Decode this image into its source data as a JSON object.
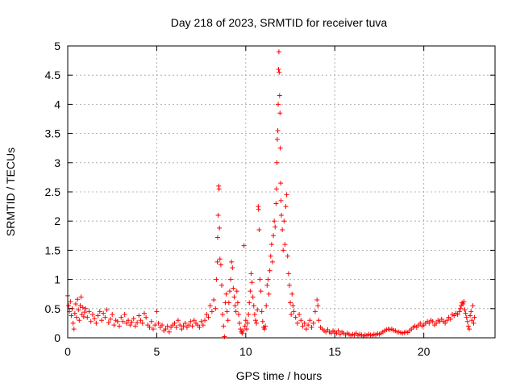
{
  "chart_data": {
    "type": "scatter",
    "title": "Day 218 of 2023, SRMTID for receiver tuva",
    "xlabel": "GPS time / hours",
    "ylabel": "SRMTID / TECUs",
    "xlim": [
      0,
      24
    ],
    "ylim": [
      0,
      5
    ],
    "xticks": [
      0,
      5,
      10,
      15,
      20
    ],
    "yticks": [
      0,
      0.5,
      1,
      1.5,
      2,
      2.5,
      3,
      3.5,
      4,
      4.5,
      5
    ],
    "grid": true,
    "marker": "+",
    "series": [
      {
        "name": "SRMTID",
        "color": "#ff0000",
        "points": [
          [
            0.0,
            0.72
          ],
          [
            0.05,
            0.55
          ],
          [
            0.1,
            0.45
          ],
          [
            0.15,
            0.62
          ],
          [
            0.2,
            0.38
          ],
          [
            0.25,
            0.5
          ],
          [
            0.3,
            0.25
          ],
          [
            0.35,
            0.15
          ],
          [
            0.4,
            0.42
          ],
          [
            0.45,
            0.58
          ],
          [
            0.5,
            0.35
          ],
          [
            0.55,
            0.66
          ],
          [
            0.6,
            0.48
          ],
          [
            0.65,
            0.3
          ],
          [
            0.7,
            0.55
          ],
          [
            0.75,
            0.7
          ],
          [
            0.8,
            0.4
          ],
          [
            0.85,
            0.52
          ],
          [
            0.9,
            0.36
          ],
          [
            0.95,
            0.44
          ],
          [
            1.0,
            0.5
          ],
          [
            1.1,
            0.35
          ],
          [
            1.2,
            0.45
          ],
          [
            1.3,
            0.28
          ],
          [
            1.4,
            0.4
          ],
          [
            1.5,
            0.33
          ],
          [
            1.6,
            0.25
          ],
          [
            1.7,
            0.38
          ],
          [
            1.8,
            0.45
          ],
          [
            1.9,
            0.3
          ],
          [
            2.0,
            0.42
          ],
          [
            2.1,
            0.35
          ],
          [
            2.2,
            0.48
          ],
          [
            2.3,
            0.26
          ],
          [
            2.4,
            0.32
          ],
          [
            2.5,
            0.4
          ],
          [
            2.6,
            0.22
          ],
          [
            2.7,
            0.3
          ],
          [
            2.8,
            0.28
          ],
          [
            2.9,
            0.2
          ],
          [
            3.0,
            0.35
          ],
          [
            3.1,
            0.28
          ],
          [
            3.2,
            0.4
          ],
          [
            3.3,
            0.25
          ],
          [
            3.4,
            0.3
          ],
          [
            3.5,
            0.22
          ],
          [
            3.6,
            0.27
          ],
          [
            3.7,
            0.33
          ],
          [
            3.8,
            0.2
          ],
          [
            3.9,
            0.26
          ],
          [
            4.0,
            0.38
          ],
          [
            4.1,
            0.3
          ],
          [
            4.2,
            0.25
          ],
          [
            4.3,
            0.42
          ],
          [
            4.4,
            0.35
          ],
          [
            4.5,
            0.22
          ],
          [
            4.6,
            0.18
          ],
          [
            4.7,
            0.28
          ],
          [
            4.8,
            0.15
          ],
          [
            4.9,
            0.22
          ],
          [
            5.0,
            0.45
          ],
          [
            5.1,
            0.25
          ],
          [
            5.2,
            0.18
          ],
          [
            5.3,
            0.22
          ],
          [
            5.4,
            0.12
          ],
          [
            5.5,
            0.15
          ],
          [
            5.6,
            0.2
          ],
          [
            5.7,
            0.1
          ],
          [
            5.8,
            0.18
          ],
          [
            5.9,
            0.22
          ],
          [
            6.0,
            0.25
          ],
          [
            6.1,
            0.18
          ],
          [
            6.2,
            0.3
          ],
          [
            6.3,
            0.22
          ],
          [
            6.4,
            0.15
          ],
          [
            6.5,
            0.2
          ],
          [
            6.6,
            0.25
          ],
          [
            6.7,
            0.18
          ],
          [
            6.8,
            0.22
          ],
          [
            6.9,
            0.28
          ],
          [
            7.0,
            0.2
          ],
          [
            7.1,
            0.3
          ],
          [
            7.2,
            0.25
          ],
          [
            7.3,
            0.22
          ],
          [
            7.4,
            0.18
          ],
          [
            7.5,
            0.28
          ],
          [
            7.6,
            0.22
          ],
          [
            7.7,
            0.3
          ],
          [
            7.8,
            0.4
          ],
          [
            7.9,
            0.35
          ],
          [
            8.0,
            0.55
          ],
          [
            8.1,
            0.45
          ],
          [
            8.2,
            0.65
          ],
          [
            8.3,
            0.5
          ],
          [
            8.35,
            1.0
          ],
          [
            8.4,
            1.3
          ],
          [
            8.42,
            1.72
          ],
          [
            8.45,
            2.1
          ],
          [
            8.48,
            2.6
          ],
          [
            8.5,
            2.55
          ],
          [
            8.52,
            1.88
          ],
          [
            8.55,
            1.35
          ],
          [
            8.6,
            1.25
          ],
          [
            8.65,
            0.9
          ],
          [
            8.7,
            0.4
          ],
          [
            8.75,
            0.2
          ],
          [
            8.8,
            0.02
          ],
          [
            8.85,
            0.6
          ],
          [
            8.9,
            0.75
          ],
          [
            8.95,
            0.45
          ],
          [
            9.0,
            0.3
          ],
          [
            9.05,
            0.6
          ],
          [
            9.1,
            0.8
          ],
          [
            9.15,
            1.0
          ],
          [
            9.2,
            1.3
          ],
          [
            9.25,
            1.2
          ],
          [
            9.3,
            0.85
          ],
          [
            9.35,
            0.7
          ],
          [
            9.4,
            0.55
          ],
          [
            9.45,
            0.45
          ],
          [
            9.5,
            0.8
          ],
          [
            9.55,
            0.6
          ],
          [
            9.6,
            0.4
          ],
          [
            9.65,
            0.25
          ],
          [
            9.7,
            0.15
          ],
          [
            9.75,
            0.1
          ],
          [
            9.8,
            0.08
          ],
          [
            9.85,
            0.12
          ],
          [
            9.9,
            1.58
          ],
          [
            9.95,
            0.2
          ],
          [
            10.0,
            0.3
          ],
          [
            10.05,
            0.15
          ],
          [
            10.1,
            0.25
          ],
          [
            10.15,
            0.4
          ],
          [
            10.2,
            0.6
          ],
          [
            10.25,
            0.8
          ],
          [
            10.3,
            1.1
          ],
          [
            10.35,
            0.95
          ],
          [
            10.4,
            0.7
          ],
          [
            10.45,
            0.55
          ],
          [
            10.5,
            0.4
          ],
          [
            10.55,
            0.3
          ],
          [
            10.6,
            0.25
          ],
          [
            10.65,
            0.48
          ],
          [
            10.7,
            2.25
          ],
          [
            10.72,
            2.2
          ],
          [
            10.75,
            1.85
          ],
          [
            10.8,
            1.0
          ],
          [
            10.85,
            0.8
          ],
          [
            10.9,
            0.45
          ],
          [
            10.95,
            0.28
          ],
          [
            11.0,
            0.18
          ],
          [
            11.05,
            0.15
          ],
          [
            11.1,
            0.2
          ],
          [
            11.15,
            0.55
          ],
          [
            11.2,
            0.9
          ],
          [
            11.25,
            1.0
          ],
          [
            11.3,
            0.75
          ],
          [
            11.35,
            1.15
          ],
          [
            11.4,
            1.4
          ],
          [
            11.45,
            1.6
          ],
          [
            11.5,
            1.3
          ],
          [
            11.55,
            1.75
          ],
          [
            11.6,
            2.0
          ],
          [
            11.65,
            1.9
          ],
          [
            11.7,
            2.3
          ],
          [
            11.72,
            2.55
          ],
          [
            11.75,
            3.0
          ],
          [
            11.77,
            3.4
          ],
          [
            11.8,
            3.55
          ],
          [
            11.82,
            4.0
          ],
          [
            11.84,
            4.6
          ],
          [
            11.86,
            4.9
          ],
          [
            11.88,
            4.55
          ],
          [
            11.9,
            4.15
          ],
          [
            11.92,
            3.85
          ],
          [
            11.94,
            3.25
          ],
          [
            11.96,
            2.65
          ],
          [
            11.98,
            2.35
          ],
          [
            12.0,
            2.1
          ],
          [
            12.05,
            1.85
          ],
          [
            12.1,
            1.5
          ],
          [
            12.15,
            2.0
          ],
          [
            12.2,
            1.6
          ],
          [
            12.25,
            2.25
          ],
          [
            12.3,
            2.45
          ],
          [
            12.35,
            1.4
          ],
          [
            12.4,
            1.1
          ],
          [
            12.45,
            0.9
          ],
          [
            12.5,
            0.6
          ],
          [
            12.55,
            0.4
          ],
          [
            12.6,
            0.75
          ],
          [
            12.65,
            0.55
          ],
          [
            12.7,
            0.45
          ],
          [
            12.8,
            0.35
          ],
          [
            12.9,
            0.25
          ],
          [
            13.0,
            0.4
          ],
          [
            13.1,
            0.3
          ],
          [
            13.2,
            0.2
          ],
          [
            13.3,
            0.25
          ],
          [
            13.4,
            0.15
          ],
          [
            13.5,
            0.22
          ],
          [
            13.6,
            0.3
          ],
          [
            13.7,
            0.18
          ],
          [
            13.8,
            0.25
          ],
          [
            13.9,
            0.45
          ],
          [
            14.0,
            0.65
          ],
          [
            14.05,
            0.55
          ],
          [
            14.1,
            0.3
          ],
          [
            14.2,
            0.18
          ],
          [
            14.3,
            0.15
          ],
          [
            14.4,
            0.12
          ],
          [
            14.5,
            0.1
          ],
          [
            14.6,
            0.14
          ],
          [
            14.7,
            0.1
          ],
          [
            14.8,
            0.08
          ],
          [
            14.9,
            0.12
          ],
          [
            15.0,
            0.1
          ],
          [
            15.1,
            0.08
          ],
          [
            15.2,
            0.12
          ],
          [
            15.3,
            0.06
          ],
          [
            15.4,
            0.1
          ],
          [
            15.5,
            0.08
          ],
          [
            15.6,
            0.05
          ],
          [
            15.7,
            0.08
          ],
          [
            15.8,
            0.06
          ],
          [
            15.9,
            0.04
          ],
          [
            16.0,
            0.06
          ],
          [
            16.1,
            0.05
          ],
          [
            16.2,
            0.08
          ],
          [
            16.3,
            0.04
          ],
          [
            16.4,
            0.06
          ],
          [
            16.5,
            0.05
          ],
          [
            16.6,
            0.03
          ],
          [
            16.7,
            0.05
          ],
          [
            16.8,
            0.04
          ],
          [
            16.9,
            0.06
          ],
          [
            17.0,
            0.05
          ],
          [
            17.1,
            0.04
          ],
          [
            17.2,
            0.06
          ],
          [
            17.3,
            0.05
          ],
          [
            17.4,
            0.07
          ],
          [
            17.5,
            0.06
          ],
          [
            17.6,
            0.08
          ],
          [
            17.7,
            0.1
          ],
          [
            17.8,
            0.12
          ],
          [
            17.9,
            0.14
          ],
          [
            18.0,
            0.15
          ],
          [
            18.1,
            0.14
          ],
          [
            18.2,
            0.15
          ],
          [
            18.3,
            0.13
          ],
          [
            18.4,
            0.12
          ],
          [
            18.5,
            0.1
          ],
          [
            18.6,
            0.1
          ],
          [
            18.7,
            0.09
          ],
          [
            18.8,
            0.08
          ],
          [
            18.9,
            0.09
          ],
          [
            19.0,
            0.1
          ],
          [
            19.1,
            0.09
          ],
          [
            19.2,
            0.12
          ],
          [
            19.3,
            0.15
          ],
          [
            19.4,
            0.18
          ],
          [
            19.5,
            0.2
          ],
          [
            19.6,
            0.18
          ],
          [
            19.7,
            0.22
          ],
          [
            19.8,
            0.25
          ],
          [
            19.9,
            0.2
          ],
          [
            20.0,
            0.22
          ],
          [
            20.1,
            0.25
          ],
          [
            20.2,
            0.28
          ],
          [
            20.3,
            0.25
          ],
          [
            20.4,
            0.3
          ],
          [
            20.5,
            0.28
          ],
          [
            20.6,
            0.22
          ],
          [
            20.7,
            0.25
          ],
          [
            20.8,
            0.3
          ],
          [
            20.9,
            0.28
          ],
          [
            21.0,
            0.32
          ],
          [
            21.1,
            0.28
          ],
          [
            21.2,
            0.25
          ],
          [
            21.3,
            0.3
          ],
          [
            21.4,
            0.35
          ],
          [
            21.5,
            0.32
          ],
          [
            21.6,
            0.4
          ],
          [
            21.7,
            0.38
          ],
          [
            21.8,
            0.42
          ],
          [
            21.9,
            0.4
          ],
          [
            22.0,
            0.45
          ],
          [
            22.05,
            0.5
          ],
          [
            22.1,
            0.55
          ],
          [
            22.15,
            0.6
          ],
          [
            22.2,
            0.58
          ],
          [
            22.25,
            0.62
          ],
          [
            22.3,
            0.48
          ],
          [
            22.35,
            0.42
          ],
          [
            22.4,
            0.35
          ],
          [
            22.45,
            0.28
          ],
          [
            22.5,
            0.2
          ],
          [
            22.55,
            0.15
          ],
          [
            22.6,
            0.38
          ],
          [
            22.65,
            0.45
          ],
          [
            22.7,
            0.3
          ],
          [
            22.75,
            0.55
          ],
          [
            22.8,
            0.25
          ],
          [
            22.85,
            0.35
          ]
        ]
      }
    ]
  }
}
